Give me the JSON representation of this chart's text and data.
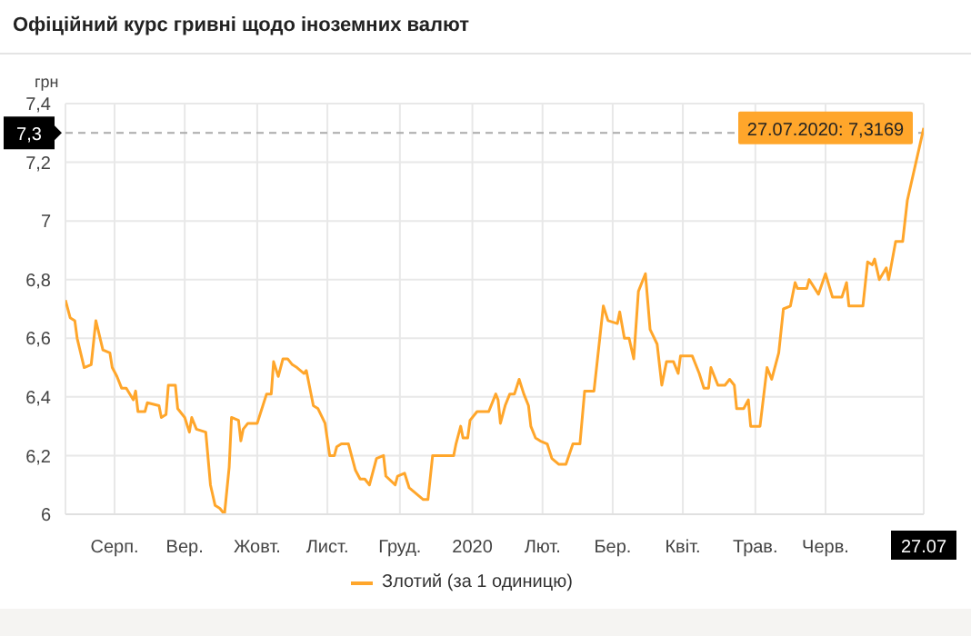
{
  "chart_data": {
    "type": "line",
    "title": "Офіційний курс гривні щодо іноземних валют",
    "ylabel": "грн",
    "x": [
      "2019-07-26",
      "2019-07-28",
      "2019-07-30",
      "2019-07-31",
      "2019-08-03",
      "2019-08-06",
      "2019-08-08",
      "2019-08-11",
      "2019-08-14",
      "2019-08-15",
      "2019-08-17",
      "2019-08-19",
      "2019-08-21",
      "2019-08-24",
      "2019-08-25",
      "2019-08-26",
      "2019-08-29",
      "2019-08-30",
      "2019-09-04",
      "2019-09-05",
      "2019-09-07",
      "2019-09-08",
      "2019-09-11",
      "2019-09-12",
      "2019-09-15",
      "2019-09-17",
      "2019-09-18",
      "2019-09-20",
      "2019-09-24",
      "2019-09-26",
      "2019-09-28",
      "2019-09-30",
      "2019-10-02",
      "2019-10-04",
      "2019-10-05",
      "2019-10-08",
      "2019-10-09",
      "2019-10-10",
      "2019-10-12",
      "2019-10-16",
      "2019-10-18",
      "2019-10-20",
      "2019-10-22",
      "2019-10-23",
      "2019-10-25",
      "2019-10-26",
      "2019-10-27",
      "2019-10-29",
      "2019-10-31",
      "2019-11-02",
      "2019-11-05",
      "2019-11-06",
      "2019-11-09",
      "2019-11-11",
      "2019-11-14",
      "2019-11-16",
      "2019-11-18",
      "2019-11-19",
      "2019-11-21",
      "2019-11-24",
      "2019-11-27",
      "2019-11-29",
      "2019-12-01",
      "2019-12-03",
      "2019-12-06",
      "2019-12-09",
      "2019-12-10",
      "2019-12-14",
      "2019-12-15",
      "2019-12-18",
      "2019-12-20",
      "2019-12-23",
      "2019-12-26",
      "2019-12-28",
      "2019-12-30",
      "2020-01-08",
      "2020-01-09",
      "2020-01-11",
      "2020-01-12",
      "2020-01-14",
      "2020-01-15",
      "2020-01-18",
      "2020-01-23",
      "2020-01-26",
      "2020-01-27",
      "2020-01-28",
      "2020-01-30",
      "2020-02-01",
      "2020-02-03",
      "2020-02-05",
      "2020-02-07",
      "2020-02-09",
      "2020-02-10",
      "2020-02-12",
      "2020-02-14",
      "2020-02-17",
      "2020-02-19",
      "2020-02-22",
      "2020-02-25",
      "2020-02-28",
      "2020-03-02",
      "2020-03-04",
      "2020-03-08",
      "2020-03-12",
      "2020-03-14",
      "2020-03-18",
      "2020-03-19",
      "2020-03-21",
      "2020-03-23",
      "2020-03-25",
      "2020-03-27",
      "2020-03-30",
      "2020-04-01",
      "2020-04-04",
      "2020-04-06",
      "2020-04-08",
      "2020-04-11",
      "2020-04-13",
      "2020-04-14",
      "2020-04-19",
      "2020-04-22",
      "2020-04-24",
      "2020-04-26",
      "2020-04-27",
      "2020-04-30",
      "2020-05-03",
      "2020-05-05",
      "2020-05-07",
      "2020-05-08",
      "2020-05-11",
      "2020-05-13",
      "2020-05-14",
      "2020-05-18",
      "2020-05-21",
      "2020-05-23",
      "2020-05-26",
      "2020-05-28",
      "2020-05-31",
      "2020-06-02",
      "2020-06-03",
      "2020-06-07",
      "2020-06-08",
      "2020-06-12",
      "2020-06-15",
      "2020-06-18",
      "2020-06-22",
      "2020-06-24",
      "2020-06-25",
      "2020-07-01",
      "2020-07-03",
      "2020-07-05",
      "2020-07-06",
      "2020-07-08",
      "2020-07-11",
      "2020-07-12",
      "2020-07-15",
      "2020-07-18",
      "2020-07-20",
      "2020-07-27"
    ],
    "series": [
      {
        "name": "Злотий (за 1 одиницю)",
        "color": "#ffa62b",
        "values": [
          6.73,
          6.67,
          6.66,
          6.6,
          6.5,
          6.51,
          6.66,
          6.56,
          6.55,
          6.5,
          6.47,
          6.43,
          6.43,
          6.39,
          6.42,
          6.35,
          6.35,
          6.38,
          6.37,
          6.33,
          6.34,
          6.44,
          6.44,
          6.36,
          6.33,
          6.28,
          6.33,
          6.29,
          6.28,
          6.1,
          6.03,
          6.02,
          6.0,
          6.16,
          6.33,
          6.32,
          6.25,
          6.29,
          6.31,
          6.31,
          6.36,
          6.41,
          6.41,
          6.52,
          6.47,
          6.5,
          6.53,
          6.53,
          6.51,
          6.5,
          6.48,
          6.49,
          6.37,
          6.36,
          6.31,
          6.2,
          6.2,
          6.23,
          6.24,
          6.24,
          6.15,
          6.12,
          6.12,
          6.1,
          6.19,
          6.2,
          6.13,
          6.1,
          6.13,
          6.14,
          6.09,
          6.07,
          6.05,
          6.05,
          6.2,
          6.2,
          6.24,
          6.3,
          6.26,
          6.26,
          6.32,
          6.35,
          6.35,
          6.41,
          6.39,
          6.31,
          6.37,
          6.41,
          6.41,
          6.46,
          6.41,
          6.37,
          6.3,
          6.26,
          6.25,
          6.24,
          6.19,
          6.17,
          6.17,
          6.24,
          6.24,
          6.42,
          6.42,
          6.71,
          6.66,
          6.65,
          6.69,
          6.6,
          6.6,
          6.53,
          6.76,
          6.82,
          6.63,
          6.58,
          6.44,
          6.52,
          6.52,
          6.48,
          6.54,
          6.54,
          6.48,
          6.43,
          6.43,
          6.5,
          6.44,
          6.44,
          6.46,
          6.44,
          6.36,
          6.36,
          6.39,
          6.3,
          6.3,
          6.5,
          6.46,
          6.55,
          6.7,
          6.71,
          6.79,
          6.77,
          6.77,
          6.8,
          6.75,
          6.82,
          6.74,
          6.74,
          6.79,
          6.71,
          6.71,
          6.86,
          6.85,
          6.87,
          6.8,
          6.84,
          6.8,
          6.93,
          6.93,
          7.07,
          7.3169
        ]
      }
    ],
    "xlim": [
      "2019-07-26",
      "2020-07-27"
    ],
    "xticks": [
      {
        "value": "2019-08-16",
        "label": "Серп."
      },
      {
        "value": "2019-09-15",
        "label": "Вер."
      },
      {
        "value": "2019-10-16",
        "label": "Жовт."
      },
      {
        "value": "2019-11-15",
        "label": "Лист."
      },
      {
        "value": "2019-12-16",
        "label": "Груд."
      },
      {
        "value": "2020-01-16",
        "label": "2020"
      },
      {
        "value": "2020-02-15",
        "label": "Лют."
      },
      {
        "value": "2020-03-16",
        "label": "Бер."
      },
      {
        "value": "2020-04-15",
        "label": "Квіт."
      },
      {
        "value": "2020-05-16",
        "label": "Трав."
      },
      {
        "value": "2020-06-15",
        "label": "Черв."
      },
      {
        "value": "2020-07-27",
        "label": "27.07"
      }
    ],
    "ylim": [
      6,
      7.4
    ],
    "yticks": [
      6,
      {
        "value": 6.2,
        "label": "6,2"
      },
      {
        "value": 6.4,
        "label": "6,4"
      },
      {
        "value": 6.6,
        "label": "6,6"
      },
      {
        "value": 6.8,
        "label": "6,8"
      },
      7,
      {
        "value": 7.2,
        "label": "7,2"
      },
      {
        "value": 7.4,
        "label": "7,4"
      }
    ],
    "ref_lines": [
      {
        "axis": "y",
        "value": 7.3,
        "label": "7,3",
        "color": "#aaaaaa",
        "line_style": "dashed"
      }
    ],
    "annotations": [
      {
        "text": "27.07.2020: 7,3169",
        "x": "2020-07-27",
        "y": 7.3169
      }
    ],
    "grid": true,
    "legend": "bottom",
    "marker": "none",
    "line_style": "solid"
  }
}
